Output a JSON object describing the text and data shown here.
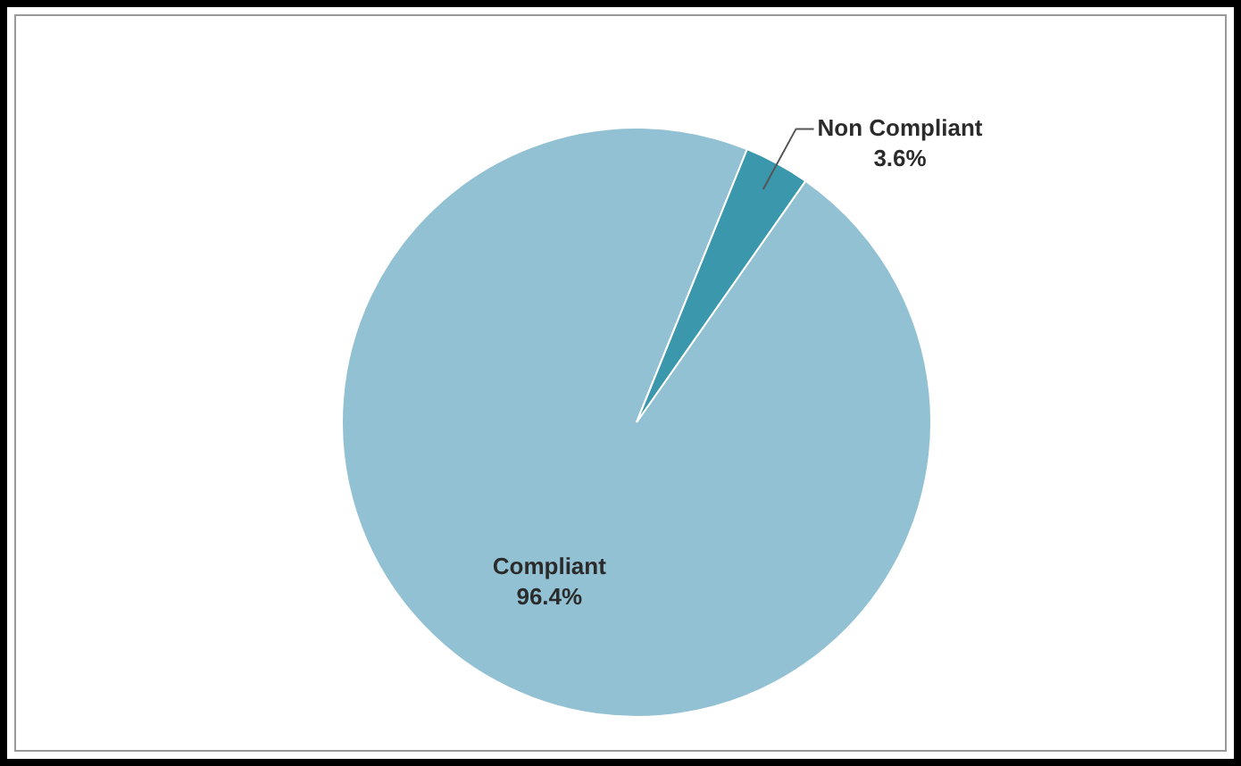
{
  "chart_data": {
    "type": "pie",
    "categories": [
      "Compliant",
      "Non Compliant"
    ],
    "values": [
      96.4,
      3.6
    ],
    "colors": [
      "#92c1d3",
      "#3a97ac"
    ],
    "value_labels": [
      "96.4%",
      "3.6%"
    ]
  }
}
